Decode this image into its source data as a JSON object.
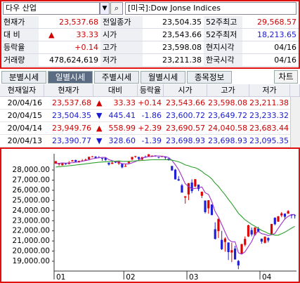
{
  "search": {
    "symbol": "다우 산업",
    "name": "[미국]:Dow Jonse Indices"
  },
  "info": [
    {
      "label": "현재가",
      "value": "23,537.68",
      "color": "#d00000"
    },
    {
      "label": "전일종가",
      "value": "23,504.35",
      "color": "#000000"
    },
    {
      "label": "52주최고",
      "value": "29,568.57",
      "color": "#d00000"
    },
    {
      "label": "대 비",
      "sign": "▲",
      "value": "33.33",
      "color": "#d00000"
    },
    {
      "label": "시가",
      "value": "23,543.66",
      "color": "#000000"
    },
    {
      "label": "52주최저",
      "value": "18,213.65",
      "color": "#1a1ad0"
    },
    {
      "label": "등락율",
      "value": "+0.14",
      "color": "#d00000"
    },
    {
      "label": "고가",
      "value": "23,598.08",
      "color": "#000000"
    },
    {
      "label": "현지시각",
      "value": "04/16",
      "color": "#000000"
    },
    {
      "label": "거래량",
      "value": "478,624,619",
      "color": "#000000"
    },
    {
      "label": "저가",
      "value": "23,211.38",
      "color": "#000000"
    },
    {
      "label": "한국시각",
      "value": "04/16",
      "color": "#000000"
    }
  ],
  "tabs": [
    "분별시세",
    "일별시세",
    "주별시세",
    "월별시세",
    "종목정보"
  ],
  "active_tab": 1,
  "chart_button": "차트",
  "table": {
    "header": [
      "현재일자",
      "현재가",
      "대비",
      "등락율",
      "시가",
      "고가",
      "저가"
    ],
    "rows": [
      {
        "color": "#d00000",
        "cells": [
          "20/04/16",
          "23,537.68",
          "▲",
          "33.33",
          "+0.14",
          "23,543.66",
          "23,598.08",
          "23,211.38"
        ]
      },
      {
        "color": "#1a1ad0",
        "cells": [
          "20/04/15",
          "23,504.35",
          "▼",
          "445.41",
          "-1.86",
          "23,600.72",
          "23,649.72",
          "23,233.32"
        ]
      },
      {
        "color": "#d00000",
        "cells": [
          "20/04/14",
          "23,949.76",
          "▲",
          "558.99",
          "+2.39",
          "23,690.57",
          "24,040.58",
          "23,683.44"
        ]
      },
      {
        "color": "#1a1ad0",
        "cells": [
          "20/04/13",
          "23,390.77",
          "▼",
          "328.60",
          "-1.39",
          "23,698.93",
          "23,698.93",
          "23,095.35"
        ]
      }
    ]
  },
  "chart_data": {
    "type": "candlestick",
    "up_color": "#e00000",
    "down_color": "#1f1fd8",
    "grid": false,
    "categories": [
      "01",
      null,
      null,
      null,
      null,
      null,
      null,
      null,
      null,
      null,
      null,
      null,
      null,
      null,
      null,
      null,
      null,
      null,
      null,
      null,
      null,
      "02",
      null,
      null,
      null,
      null,
      null,
      null,
      null,
      null,
      null,
      null,
      null,
      null,
      null,
      null,
      null,
      null,
      null,
      null,
      "03",
      null,
      null,
      null,
      null,
      null,
      null,
      null,
      null,
      null,
      null,
      null,
      null,
      null,
      null,
      null,
      null,
      null,
      null,
      null,
      null,
      null,
      "04",
      null,
      null,
      null,
      null,
      null,
      null,
      null,
      null,
      null,
      null
    ],
    "open": [
      28640,
      28590,
      28470,
      28640,
      28590,
      28850,
      28990,
      28820,
      28900,
      28940,
      29060,
      29320,
      29320,
      29260,
      29180,
      29200,
      28730,
      28600,
      28820,
      28640,
      28620,
      28320,
      28690,
      29050,
      29330,
      29290,
      29030,
      29310,
      29320,
      29400,
      29440,
      29280,
      29290,
      29330,
      29130,
      28400,
      28030,
      27090,
      26490,
      25280,
      25590,
      26760,
      26380,
      26560,
      25460,
      24990,
      24220,
      24600,
      22160,
      21970,
      21110,
      20900,
      20850,
      19860,
      20250,
      19030,
      19720,
      20620,
      21440,
      22070,
      21600,
      22210,
      21230,
      20820,
      21290,
      21690,
      23290,
      22910,
      23520,
      23698.93,
      23690.57,
      23600.72,
      23543.66
    ],
    "high": [
      28880,
      28690,
      28710,
      28680,
      28870,
      29000,
      29010,
      28910,
      29070,
      29130,
      29300,
      29370,
      29370,
      29370,
      29190,
      29270,
      28730,
      28860,
      28890,
      28890,
      28620,
      28590,
      28840,
      29290,
      29380,
      29290,
      29280,
      29420,
      29570,
      29430,
      29440,
      29290,
      29410,
      29350,
      29160,
      28400,
      28100,
      27390,
      26630,
      25400,
      26710,
      27080,
      27100,
      26560,
      25870,
      24990,
      25020,
      24600,
      22840,
      23190,
      22000,
      21360,
      20850,
      20820,
      20530,
      19120,
      20700,
      21440,
      22600,
      22330,
      22360,
      22390,
      21230,
      21470,
      21370,
      22680,
      23330,
      23470,
      23850,
      23698.93,
      24040.58,
      23649.72,
      23598.08
    ],
    "low": [
      28620,
      28420,
      28440,
      28510,
      28570,
      28840,
      28780,
      28720,
      28820,
      28940,
      29050,
      29250,
      29140,
      29170,
      28900,
      28900,
      28440,
      28600,
      28690,
      28500,
      28170,
      28320,
      28560,
      28960,
      29200,
      28990,
      28970,
      29210,
      29320,
      29340,
      29300,
      29140,
      29290,
      29010,
      28920,
      27920,
      27060,
      26920,
      25770,
      24680,
      25030,
      25710,
      26290,
      25920,
      25230,
      23710,
      23690,
      23550,
      21150,
      21290,
      20110,
      19940,
      19120,
      18910,
      19170,
      18210,
      19720,
      20460,
      21390,
      21460,
      21520,
      21870,
      20740,
      20740,
      20860,
      21690,
      22550,
      22880,
      23350,
      23095.35,
      23683.44,
      23233.32,
      23211.38
    ],
    "close": [
      28870,
      28630,
      28700,
      28580,
      28740,
      28960,
      28820,
      28910,
      28940,
      29030,
      29300,
      29350,
      29200,
      29190,
      29160,
      28990,
      28540,
      28720,
      28730,
      28860,
      28260,
      28400,
      28810,
      29290,
      29380,
      29100,
      29280,
      29280,
      29550,
      29420,
      29400,
      29230,
      29350,
      29220,
      28990,
      27960,
      27080,
      26960,
      25770,
      25410,
      26700,
      25920,
      27090,
      26120,
      25860,
      23850,
      25020,
      23550,
      21200,
      23190,
      20190,
      21240,
      19900,
      20090,
      19170,
      18590,
      20700,
      21200,
      22550,
      21640,
      22330,
      21920,
      20940,
      21410,
      21050,
      22680,
      22650,
      23430,
      23720,
      23390.77,
      23949.76,
      23504.35,
      23537.68
    ],
    "lines": [
      {
        "color": "#9b30c8",
        "values": [
          28640,
          28660,
          28700,
          28680,
          28700,
          28720,
          28760,
          28800,
          28870,
          28930,
          29000,
          29110,
          29160,
          29210,
          29240,
          29240,
          29020,
          28920,
          28830,
          28770,
          28620,
          28600,
          28600,
          28710,
          28830,
          28990,
          29170,
          29270,
          29320,
          29330,
          29390,
          29380,
          29350,
          29320,
          29240,
          28950,
          28520,
          28040,
          27350,
          26640,
          26380,
          26150,
          26180,
          26240,
          26340,
          25770,
          25590,
          24890,
          23900,
          23360,
          22610,
          21870,
          21160,
          20920,
          20920,
          19840,
          19690,
          19930,
          20440,
          20940,
          21680,
          21930,
          21720,
          21650,
          21530,
          21600,
          21750,
          22240,
          22710,
          23180,
          23430,
          23600,
          23620
        ]
      },
      {
        "color": "#2ca02c",
        "values": [
          28300,
          28330,
          28360,
          28390,
          28420,
          28450,
          28490,
          28530,
          28570,
          28610,
          28650,
          28690,
          28730,
          28760,
          28790,
          28820,
          28830,
          28850,
          28870,
          28890,
          28860,
          28850,
          28850,
          28880,
          28910,
          28920,
          28940,
          28960,
          28990,
          29010,
          29020,
          29010,
          29020,
          29020,
          29020,
          28970,
          28900,
          28810,
          28670,
          28500,
          28420,
          28290,
          28230,
          28070,
          27870,
          27600,
          27400,
          27110,
          26700,
          26380,
          25950,
          25560,
          25100,
          24690,
          24210,
          23740,
          23420,
          23090,
          22860,
          22630,
          22450,
          22250,
          22040,
          21910,
          21740,
          21650,
          21570,
          21570,
          21710,
          21870,
          22060,
          22260,
          22440
        ]
      }
    ],
    "ylim": [
      18030,
      29600
    ],
    "yticks": [
      {
        "value": 19000,
        "label": "19,000.00"
      },
      {
        "value": 20000,
        "label": "20,000.00"
      },
      {
        "value": 21000,
        "label": "21,000.00"
      },
      {
        "value": 22000,
        "label": "22,000.00"
      },
      {
        "value": 23000,
        "label": "23,000.00"
      },
      {
        "value": 24000,
        "label": "24,000.00"
      },
      {
        "value": 25000,
        "label": "25,000.00"
      },
      {
        "value": 26000,
        "label": "26,000.00"
      },
      {
        "value": 27000,
        "label": "27,000.00"
      },
      {
        "value": 28000,
        "label": "28,000.00"
      }
    ]
  }
}
